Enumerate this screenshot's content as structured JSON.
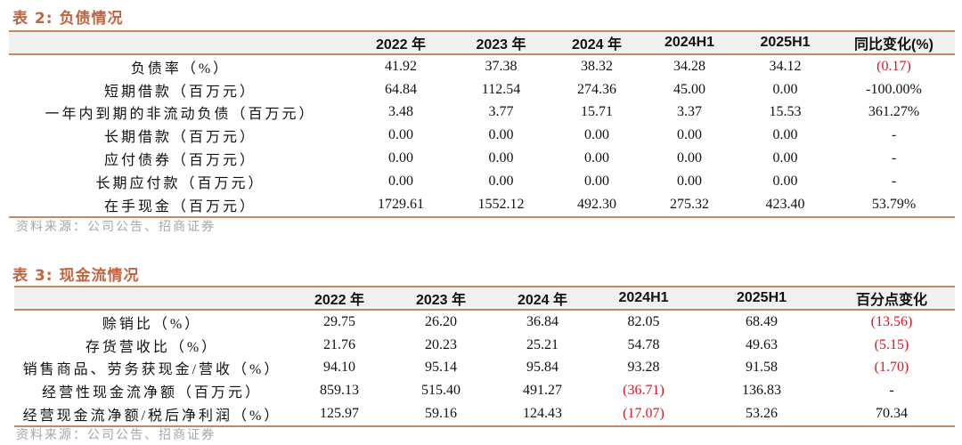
{
  "table2": {
    "title": "表 2:  负债情况",
    "headers": [
      "",
      "2022 年",
      "2023 年",
      "2024 年",
      "2024H1",
      "2025H1",
      "同比变化(%)"
    ],
    "rows": [
      [
        "负债率（%）",
        "41.92",
        "37.38",
        "38.32",
        "34.28",
        "34.12",
        "(0.17)"
      ],
      [
        "短期借款（百万元）",
        "64.84",
        "112.54",
        "274.36",
        "45.00",
        "0.00",
        "-100.00%"
      ],
      [
        "一年内到期的非流动负债（百万元）",
        "3.48",
        "3.77",
        "15.71",
        "3.37",
        "15.53",
        "361.27%"
      ],
      [
        "长期借款（百万元）",
        "0.00",
        "0.00",
        "0.00",
        "0.00",
        "0.00",
        "-"
      ],
      [
        "应付债券（百万元）",
        "0.00",
        "0.00",
        "0.00",
        "0.00",
        "0.00",
        "-"
      ],
      [
        "长期应付款（百万元）",
        "0.00",
        "0.00",
        "0.00",
        "0.00",
        "0.00",
        "-"
      ],
      [
        "在手现金（百万元）",
        "1729.61",
        "1552.12",
        "492.30",
        "275.32",
        "423.40",
        "53.79%"
      ]
    ],
    "source": "资料来源：公司公告、招商证券"
  },
  "table3": {
    "title": "表 3:  现金流情况",
    "headers": [
      "",
      "2022 年",
      "2023 年",
      "2024 年",
      "2024H1",
      "2025H1",
      "百分点变化"
    ],
    "rows": [
      [
        "赊销比（%）",
        "29.75",
        "26.20",
        "36.84",
        "82.05",
        "68.49",
        "(13.56)"
      ],
      [
        "存货营收比（%）",
        "21.76",
        "20.23",
        "25.21",
        "54.78",
        "49.63",
        "(5.15)"
      ],
      [
        "销售商品、劳务获现金/营收（%）",
        "94.10",
        "95.14",
        "95.84",
        "93.28",
        "91.58",
        "(1.70)"
      ],
      [
        "经营性现金流净额（百万元）",
        "859.13",
        "515.40",
        "491.27",
        "(36.71)",
        "136.83",
        "-"
      ],
      [
        "经营现金流净额/税后净利润（%）",
        "125.97",
        "59.16",
        "124.43",
        "(17.07)",
        "53.26",
        "70.34"
      ]
    ],
    "source": "资料来源：公司公告、招商证券"
  },
  "colors": {
    "title": "#c0643f",
    "rule": "#c9856a",
    "header_bg": "#f1f1f1",
    "negative": "#e0141e",
    "source": "#a6a6a6"
  }
}
